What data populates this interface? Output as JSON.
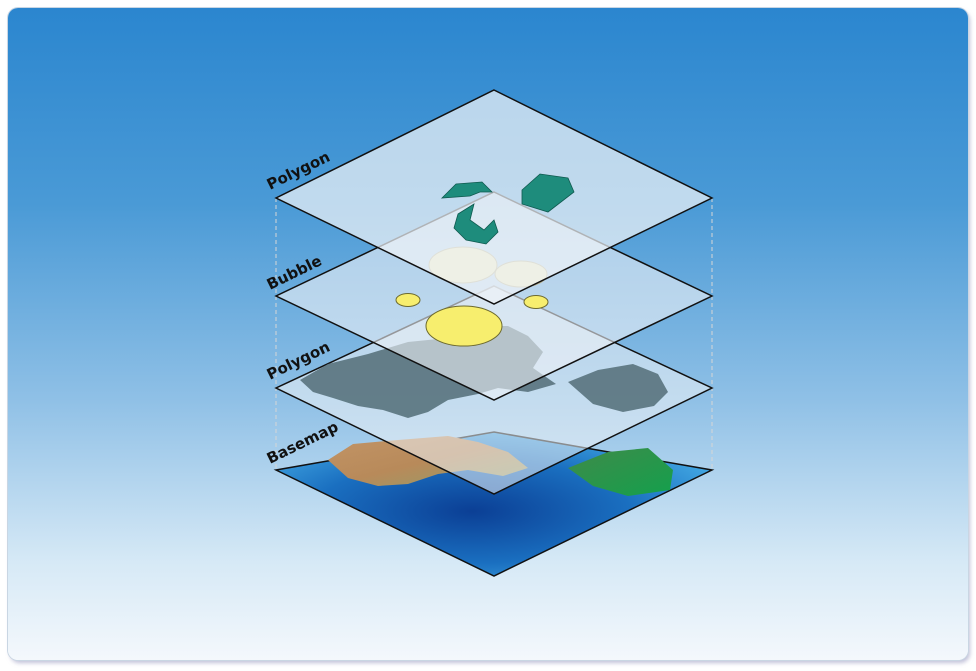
{
  "layers": [
    {
      "label": "Polygon"
    },
    {
      "label": "Bubble"
    },
    {
      "label": "Polygon"
    },
    {
      "label": "Basemap"
    }
  ],
  "colors": {
    "frame_top": "#2b86cf",
    "frame_bottom": "#f4f8fc",
    "plane_fill": "#eef2f6",
    "plane_edge": "#111111",
    "polygon_shapes": "#1e8c7c",
    "bubble_faded": "#f4ecb0",
    "bubble_solid": "#f7ee6e",
    "land_polygon": "#5e7883",
    "ocean": "#1a6fc0",
    "land_basemap": "#b58d62"
  }
}
